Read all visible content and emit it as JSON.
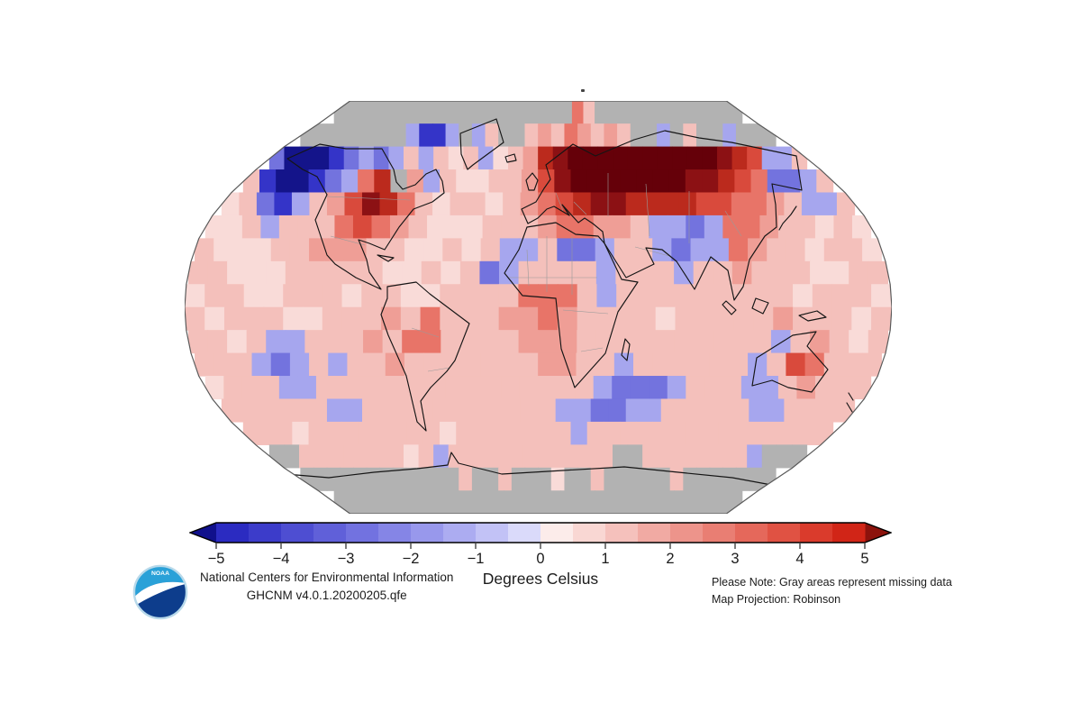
{
  "page": {
    "background": "#ffffff"
  },
  "map": {
    "projection": "Robinson",
    "outline_color": "#5a5a5a",
    "grid": {
      "cols": 36,
      "rows": 18,
      "lon_start": -180,
      "lat_start": 90,
      "cell_degrees": 10,
      "palette": {
        "G": "#b2b2b2",
        "A": "#14148a",
        "B": "#3434c8",
        "C": "#7373de",
        "D": "#a6a6ee",
        "E": "#d2d2f8",
        "0": "#fdf0ef",
        "1": "#f9dbd8",
        "2": "#f4c0bb",
        "3": "#ef9e96",
        "4": "#e87468",
        "5": "#d94a3c",
        "6": "#bb2a1d",
        "7": "#8c1114",
        "8": "#650009"
      },
      "palette_values_degC": {
        "G": "missing data",
        "A": "-5",
        "B": "-3",
        "C": "-2",
        "D": "-1",
        "E": "-0.5",
        "0": "0",
        "1": "+0.5",
        "2": "+1",
        "3": "+1.75",
        "4": "+2.5",
        "5": "+3.25",
        "6": "+4",
        "7": "+4.5",
        "8": "+5"
      },
      "cells": [
        "GGGGGGGGGGGGGGGGGGGGG42GGGGGGGGGGGGG",
        "GGGGGGGGDBBDGD2GG23243232GGDG2GGDGGG",
        "CAAABCDCD2D212D123678888888888765DD2",
        "2BAABCD46G3D21122357888888877654CCD2",
        "12CBD2357642122123456776666554432DD2",
        "112D22245432111222344332DDCD44322121",
        "2111223332211212DD2CCD22DCDD43221221",
        "221112222211212CD2222D222D2232221122",
        "122112221221122224442D22222222212221",
        "212221122232422233432222122222322212",
        "2212DD222324422223332222222222D23212",
        "222DCD2D22322222223322D222222D254222",
        "1222DD222222222222222DCCCD222DD23222",
        "222222DD22222222222DDCCDD22222DD2222",
        "22212222222212222222D222222222222222",
        "GG222222212D22222222222GG2222222DGGG",
        "GGGGGGGGGGGG2GG2GGG1GG2GGGGG2GGGGGGG",
        "GGGGGGGGGGGGGGGGGGGGGGGGGGGGGGGGGGGG"
      ]
    }
  },
  "colorbar": {
    "title": "Degrees Celsius",
    "min": -5,
    "max": 5,
    "ticks": [
      "−5",
      "−4",
      "−3",
      "−2",
      "−1",
      "0",
      "1",
      "2",
      "3",
      "4",
      "5"
    ],
    "left_arrow_color": "#10108c",
    "right_arrow_color": "#8c120c",
    "segments": [
      "#2b2bc1",
      "#3c3cca",
      "#4e4ed2",
      "#6060d9",
      "#7272e0",
      "#8585e6",
      "#9898ec",
      "#acacf1",
      "#c2c2f6",
      "#dadafa",
      "#fcecea",
      "#f9d7d3",
      "#f5c1bc",
      "#f1aaa3",
      "#ed948b",
      "#e97e73",
      "#e5685b",
      "#e05243",
      "#da3b2c",
      "#d12517"
    ]
  },
  "footer": {
    "logo": {
      "text": "NOAA",
      "top_color": "#2aa1d8",
      "bottom_color": "#0d3d8c"
    },
    "org_line1": "National Centers for Environmental Information",
    "org_line2": "GHCNM v4.0.1.20200205.qfe",
    "note_line1": "Please Note: Gray areas represent missing data",
    "note_line2": "Map Projection: Robinson"
  }
}
